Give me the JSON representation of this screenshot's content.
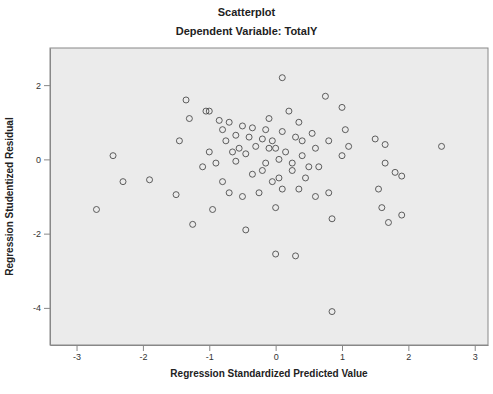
{
  "chart_data": {
    "type": "scatter",
    "title": "Scatterplot",
    "subtitle": "Dependent Variable: TotalY",
    "x_label": "Regression Standardized Predicted Value",
    "y_label": "Regression Studentized Residual",
    "x": [
      -2.7,
      -2.45,
      -2.3,
      -1.9,
      -1.5,
      -1.45,
      -1.35,
      -1.3,
      -1.25,
      -1.1,
      -1.05,
      -1,
      -1,
      -0.95,
      -0.9,
      -0.85,
      -0.8,
      -0.8,
      -0.75,
      -0.7,
      -0.7,
      -0.65,
      -0.6,
      -0.6,
      -0.55,
      -0.5,
      -0.5,
      -0.45,
      -0.45,
      -0.4,
      -0.35,
      -0.35,
      -0.3,
      -0.25,
      -0.2,
      -0.2,
      -0.15,
      -0.15,
      -0.1,
      -0.1,
      -0.05,
      -0.05,
      0,
      0,
      0,
      0.05,
      0.05,
      0.1,
      0.1,
      0.1,
      0.15,
      0.2,
      0.25,
      0.25,
      0.3,
      0.3,
      0.35,
      0.35,
      0.4,
      0.4,
      0.45,
      0.5,
      0.55,
      0.6,
      0.6,
      0.65,
      0.75,
      0.8,
      0.8,
      0.85,
      0.85,
      1,
      1.05,
      1,
      1.1,
      1.5,
      1.55,
      1.6,
      1.65,
      1.65,
      1.8,
      1.9,
      1.9,
      2.5,
      1.7
    ],
    "values": [
      -1.35,
      0.1,
      -0.6,
      -0.55,
      -0.95,
      0.5,
      1.6,
      1.1,
      -1.75,
      -0.2,
      1.3,
      1.3,
      0.2,
      -1.35,
      -0.1,
      1.05,
      -0.6,
      0.8,
      0.5,
      -0.9,
      1.0,
      0.2,
      0.65,
      -0.05,
      0.3,
      -1.0,
      0.9,
      0.15,
      -1.9,
      0.6,
      -0.4,
      0.85,
      0.35,
      -0.9,
      0.55,
      -0.3,
      0.8,
      -0.1,
      0.3,
      1.1,
      -0.6,
      0.5,
      -1.3,
      0.3,
      -2.55,
      -0.5,
      0.0,
      0.75,
      -0.8,
      2.2,
      0.2,
      1.3,
      -0.3,
      -0.1,
      0.6,
      -2.6,
      -0.8,
      1.0,
      0.1,
      0.5,
      -0.5,
      -0.2,
      0.7,
      -1.0,
      0.3,
      -0.2,
      1.7,
      0.5,
      -0.9,
      -1.6,
      -4.1,
      1.4,
      0.8,
      0.1,
      0.35,
      0.55,
      -0.8,
      -1.3,
      0.4,
      -0.1,
      -0.35,
      -0.45,
      -1.5,
      0.35,
      -1.7
    ],
    "xlim": [
      -3.4,
      3.2
    ],
    "xticks": [
      -3,
      -2,
      -1,
      0,
      1,
      2,
      3
    ],
    "ylim": [
      -5,
      3
    ],
    "yticks": [
      -4,
      -2,
      0,
      2
    ],
    "marker": "open-circle",
    "color": "#3a3a3a",
    "grid": false
  }
}
